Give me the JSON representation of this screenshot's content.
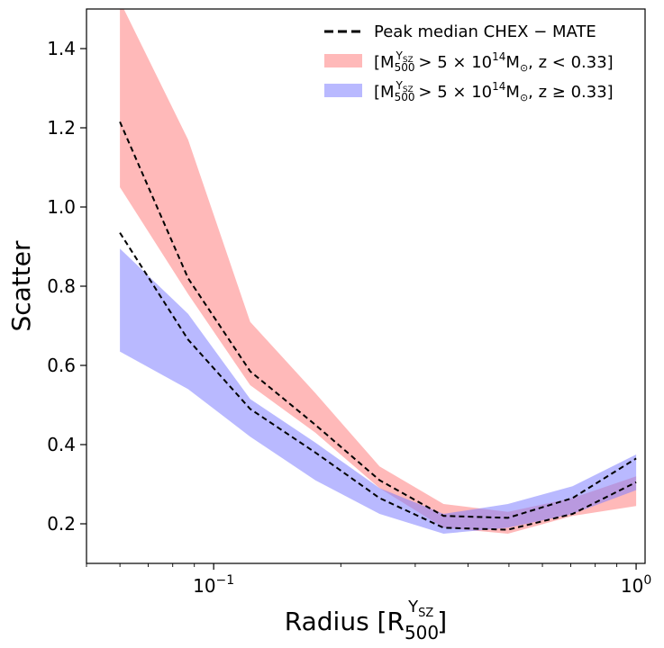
{
  "chart_data": {
    "type": "line",
    "xscale": "log",
    "xlim": [
      0.05,
      1.05
    ],
    "ylim": [
      0.1,
      1.5
    ],
    "xlabel": "Radius [R",
    "xlabel_sup": "Y",
    "xlabel_sup_sub": "SZ",
    "xlabel_sub": "500",
    "xlabel_close": "]",
    "ylabel": "Scatter",
    "grid": false,
    "legend_position": "upper right",
    "x_tick_labels": [
      {
        "value": 0.1,
        "base": "10",
        "exp": "−1"
      },
      {
        "value": 1.0,
        "base": "10",
        "exp": "0"
      }
    ],
    "y_tick_labels": [
      {
        "value": 0.2,
        "label": "0.2"
      },
      {
        "value": 0.4,
        "label": "0.4"
      },
      {
        "value": 0.6,
        "label": "0.6"
      },
      {
        "value": 0.8,
        "label": "0.8"
      },
      {
        "value": 1.0,
        "label": "1.0"
      },
      {
        "value": 1.2,
        "label": "1.2"
      },
      {
        "value": 1.4,
        "label": "1.4"
      }
    ],
    "legend": {
      "line_label": "Peak median CHEX − MATE",
      "bands": [
        {
          "M": "M",
          "Msup": "Y",
          "Msupsub": "SZ",
          "Msub": "500",
          "rel": " > 5 × 10",
          "exp": "14",
          "unit": "M",
          "unitsub": "⊙",
          "zpart": ", z < 0.33]",
          "open": "["
        },
        {
          "M": "M",
          "Msup": "Y",
          "Msupsub": "SZ",
          "Msub": "500",
          "rel": " > 5 × 10",
          "exp": "14",
          "unit": "M",
          "unitsub": "⊙",
          "zpart": ", z ≥ 0.33]",
          "open": "["
        }
      ]
    },
    "series": [
      {
        "kind": "band",
        "color": "#ff8080",
        "opacity": 0.55,
        "x": [
          0.06,
          0.087,
          0.122,
          0.174,
          0.247,
          0.35,
          0.497,
          0.707,
          1.0
        ],
        "lower": [
          1.05,
          0.78,
          0.55,
          0.43,
          0.29,
          0.19,
          0.175,
          0.22,
          0.245
        ],
        "upper": [
          1.52,
          1.17,
          0.71,
          0.53,
          0.345,
          0.25,
          0.23,
          0.265,
          0.32
        ]
      },
      {
        "kind": "band",
        "color": "#8080ff",
        "opacity": 0.55,
        "x": [
          0.06,
          0.087,
          0.122,
          0.174,
          0.247,
          0.35,
          0.497,
          0.707,
          1.0
        ],
        "lower": [
          0.635,
          0.54,
          0.42,
          0.31,
          0.225,
          0.175,
          0.19,
          0.225,
          0.285
        ],
        "upper": [
          0.895,
          0.73,
          0.515,
          0.405,
          0.29,
          0.225,
          0.25,
          0.295,
          0.375
        ]
      },
      {
        "kind": "line",
        "color": "#000000",
        "dash": true,
        "x": [
          0.06,
          0.087,
          0.122,
          0.174,
          0.247,
          0.35,
          0.497,
          0.707,
          1.0
        ],
        "y": [
          1.215,
          0.82,
          0.585,
          0.45,
          0.31,
          0.22,
          0.215,
          0.265,
          0.365
        ]
      },
      {
        "kind": "line",
        "color": "#000000",
        "dash": true,
        "x": [
          0.06,
          0.087,
          0.122,
          0.174,
          0.247,
          0.35,
          0.497,
          0.707,
          1.0
        ],
        "y": [
          0.935,
          0.665,
          0.49,
          0.38,
          0.265,
          0.19,
          0.185,
          0.225,
          0.305
        ]
      }
    ]
  }
}
